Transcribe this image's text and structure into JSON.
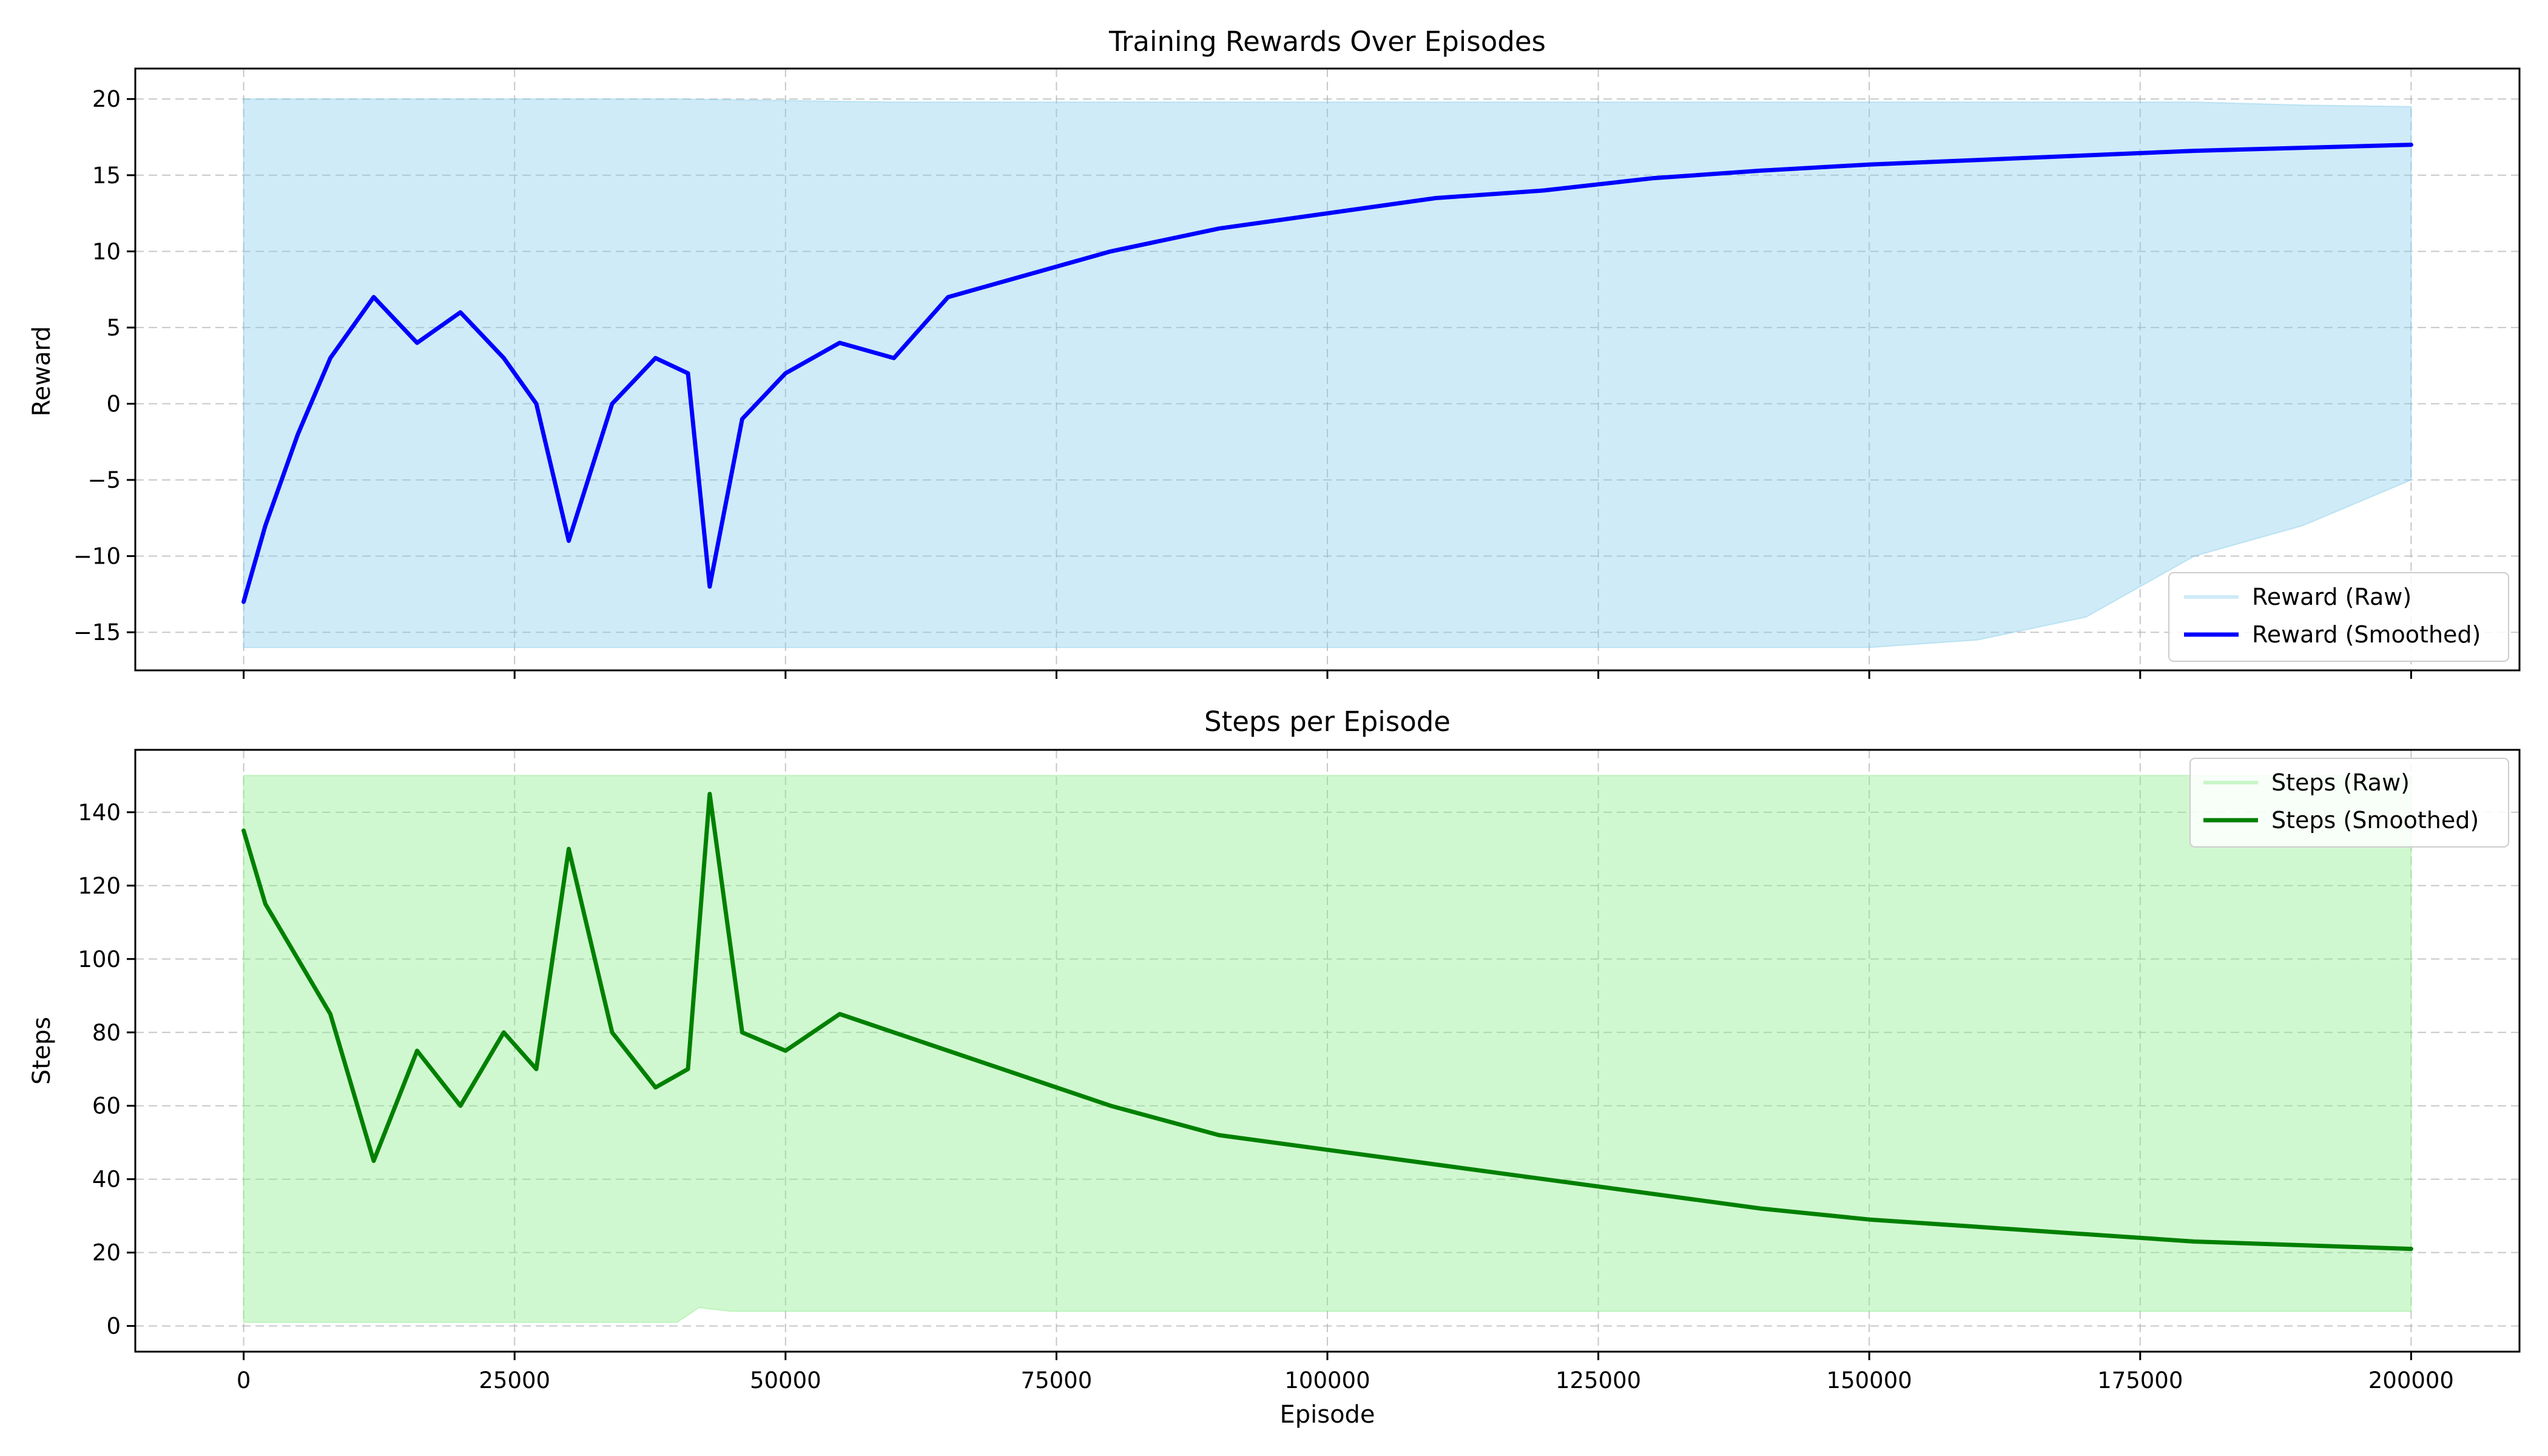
{
  "chart_data": [
    {
      "type": "line",
      "title": "Training Rewards Over Episodes",
      "xlabel": "",
      "ylabel": "Reward",
      "xlim": [
        -10000,
        210000
      ],
      "ylim": [
        -17.5,
        22
      ],
      "x_ticks": [
        0,
        25000,
        50000,
        75000,
        100000,
        125000,
        150000,
        175000,
        200000
      ],
      "x_tick_labels_visible": false,
      "y_ticks": [
        -15,
        -10,
        -5,
        0,
        5,
        10,
        15,
        20
      ],
      "y_tick_labels": [
        "−15",
        "−10",
        "−5",
        "0",
        "5",
        "10",
        "15",
        "20"
      ],
      "grid": true,
      "legend_position": "lower-right",
      "series": [
        {
          "name": "Reward (Raw)",
          "color": "#87ceeb",
          "style": "band",
          "x": [
            0,
            20000,
            40000,
            60000,
            80000,
            100000,
            110000,
            120000,
            130000,
            140000,
            150000,
            160000,
            170000,
            180000,
            190000,
            200000
          ],
          "upper": [
            20,
            20,
            20,
            19.8,
            19.8,
            19.8,
            19.8,
            19.8,
            19.8,
            19.8,
            19.8,
            19.8,
            19.8,
            19.8,
            19.6,
            19.5
          ],
          "lower": [
            -16,
            -16,
            -16,
            -16,
            -16,
            -16,
            -16,
            -16,
            -16,
            -16,
            -16,
            -15.5,
            -14,
            -10,
            -8,
            -5
          ]
        },
        {
          "name": "Reward (Smoothed)",
          "color": "#0000ff",
          "style": "line",
          "x": [
            0,
            2000,
            5000,
            8000,
            12000,
            16000,
            20000,
            24000,
            27000,
            30000,
            34000,
            38000,
            41000,
            43000,
            46000,
            50000,
            55000,
            60000,
            65000,
            70000,
            75000,
            80000,
            90000,
            100000,
            110000,
            120000,
            130000,
            140000,
            150000,
            160000,
            170000,
            180000,
            190000,
            200000
          ],
          "y": [
            -13,
            -8,
            -2,
            3,
            7,
            4,
            6,
            3,
            0,
            -9,
            0,
            3,
            2,
            -12,
            -1,
            2,
            4,
            3,
            7,
            8,
            9,
            10,
            11.5,
            12.5,
            13.5,
            14,
            14.8,
            15.3,
            15.7,
            16,
            16.3,
            16.6,
            16.8,
            17
          ]
        }
      ]
    },
    {
      "type": "line",
      "title": "Steps per Episode",
      "xlabel": "Episode",
      "ylabel": "Steps",
      "xlim": [
        -10000,
        210000
      ],
      "ylim": [
        -7,
        157
      ],
      "x_ticks": [
        0,
        25000,
        50000,
        75000,
        100000,
        125000,
        150000,
        175000,
        200000
      ],
      "x_tick_labels": [
        "0",
        "25000",
        "50000",
        "75000",
        "100000",
        "125000",
        "150000",
        "175000",
        "200000"
      ],
      "y_ticks": [
        0,
        20,
        40,
        60,
        80,
        100,
        120,
        140
      ],
      "y_tick_labels": [
        "0",
        "20",
        "40",
        "60",
        "80",
        "100",
        "120",
        "140"
      ],
      "grid": true,
      "legend_position": "upper-right",
      "series": [
        {
          "name": "Steps (Raw)",
          "color": "#90ee90",
          "style": "band",
          "x": [
            0,
            20000,
            40000,
            42000,
            45000,
            60000,
            80000,
            100000,
            120000,
            140000,
            160000,
            180000,
            200000
          ],
          "upper": [
            150,
            150,
            150,
            150,
            150,
            150,
            150,
            150,
            150,
            150,
            150,
            150,
            150
          ],
          "lower": [
            1,
            1,
            1,
            5,
            4,
            4,
            4,
            4,
            4,
            4,
            4,
            4,
            4
          ]
        },
        {
          "name": "Steps (Smoothed)",
          "color": "#008000",
          "style": "line",
          "x": [
            0,
            2000,
            5000,
            8000,
            12000,
            16000,
            20000,
            24000,
            27000,
            30000,
            34000,
            38000,
            41000,
            43000,
            46000,
            50000,
            55000,
            60000,
            65000,
            70000,
            75000,
            80000,
            90000,
            100000,
            110000,
            120000,
            130000,
            140000,
            150000,
            160000,
            170000,
            180000,
            190000,
            200000
          ],
          "y": [
            135,
            115,
            100,
            85,
            45,
            75,
            60,
            80,
            70,
            130,
            80,
            65,
            70,
            145,
            80,
            75,
            85,
            80,
            75,
            70,
            65,
            60,
            52,
            48,
            44,
            40,
            36,
            32,
            29,
            27,
            25,
            23,
            22,
            21
          ]
        }
      ]
    }
  ]
}
